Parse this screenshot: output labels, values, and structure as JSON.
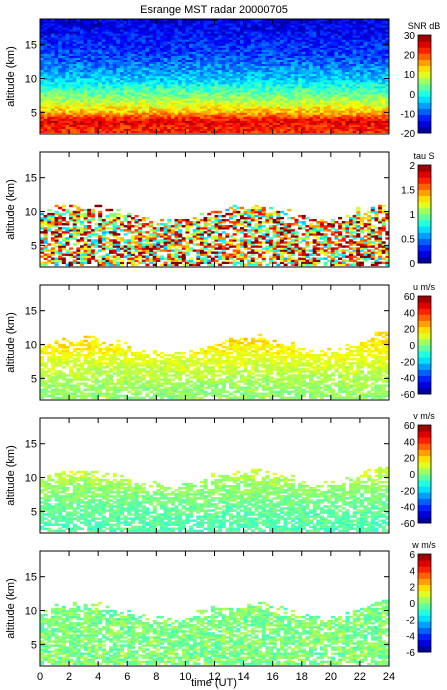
{
  "figure": {
    "title": "Esrange MST radar 20000705",
    "xlabel": "time (UT)",
    "x_ticks": [
      "0",
      "2",
      "4",
      "6",
      "8",
      "10",
      "12",
      "14",
      "16",
      "18",
      "20",
      "22",
      "24"
    ],
    "xlim": [
      0,
      24
    ]
  },
  "colormap": "jet",
  "chart_data": [
    {
      "type": "heatmap",
      "panel": "snr",
      "ylabel": "altitude (km)",
      "ylim": [
        1.8,
        18.8
      ],
      "y_ticks": [
        "5",
        "10",
        "15"
      ],
      "colorbar_label": "SNR dB",
      "clim": [
        -20,
        30
      ],
      "colorbar_ticks": [
        "-20",
        "-10",
        "0",
        "10",
        "20",
        "30"
      ],
      "data_altitude_range_km": [
        2,
        18.6
      ],
      "x": [
        0,
        1,
        2,
        3,
        4,
        5,
        6,
        7,
        8,
        9,
        10,
        11,
        12,
        13,
        14,
        15,
        16,
        17,
        18,
        19,
        20,
        21,
        22,
        23,
        24
      ],
      "profiles": {
        "altitude_km": [
          2.5,
          3.5,
          5,
          7,
          10,
          13,
          16,
          18
        ],
        "snr_db": [
          22,
          25,
          14,
          6,
          -4,
          -10,
          -13,
          -15
        ]
      }
    },
    {
      "type": "heatmap",
      "panel": "tau",
      "ylabel": "altitude (km)",
      "ylim": [
        1.8,
        18.8
      ],
      "y_ticks": [
        "5",
        "10",
        "15"
      ],
      "colorbar_label": "tau S",
      "clim": [
        0,
        2
      ],
      "colorbar_ticks": [
        "0",
        "0.5",
        "1",
        "1.5",
        "2"
      ],
      "data_altitude_range_km": [
        2,
        11
      ],
      "typical_value_s": 1.4
    },
    {
      "type": "heatmap",
      "panel": "u",
      "ylabel": "altitude (km)",
      "ylim": [
        1.8,
        18.8
      ],
      "y_ticks": [
        "5",
        "10",
        "15"
      ],
      "colorbar_label": "u m/s",
      "clim": [
        -60,
        60
      ],
      "colorbar_ticks": [
        "-60",
        "-40",
        "-20",
        "0",
        "20",
        "40",
        "60"
      ],
      "data_altitude_range_km": [
        2,
        12
      ],
      "profiles": {
        "altitude_km": [
          3,
          6,
          9,
          11
        ],
        "u_ms": [
          2,
          8,
          15,
          20
        ]
      }
    },
    {
      "type": "heatmap",
      "panel": "v",
      "ylabel": "altitude (km)",
      "ylim": [
        1.8,
        18.8
      ],
      "y_ticks": [
        "5",
        "10",
        "15"
      ],
      "colorbar_label": "v m/s",
      "clim": [
        -60,
        60
      ],
      "colorbar_ticks": [
        "-60",
        "-40",
        "-20",
        "0",
        "20",
        "40",
        "60"
      ],
      "data_altitude_range_km": [
        2,
        12
      ],
      "profiles": {
        "altitude_km": [
          3,
          6,
          9,
          11
        ],
        "v_ms": [
          -5,
          -2,
          4,
          10
        ]
      }
    },
    {
      "type": "heatmap",
      "panel": "w",
      "ylabel": "altitude (km)",
      "ylim": [
        1.8,
        18.8
      ],
      "y_ticks": [
        "5",
        "10",
        "15"
      ],
      "colorbar_label": "w m/s",
      "clim": [
        -6,
        6
      ],
      "colorbar_ticks": [
        "-6",
        "-4",
        "-2",
        "0",
        "2",
        "4",
        "6"
      ],
      "data_altitude_range_km": [
        2,
        12
      ],
      "typical_value_ms": 0
    }
  ]
}
